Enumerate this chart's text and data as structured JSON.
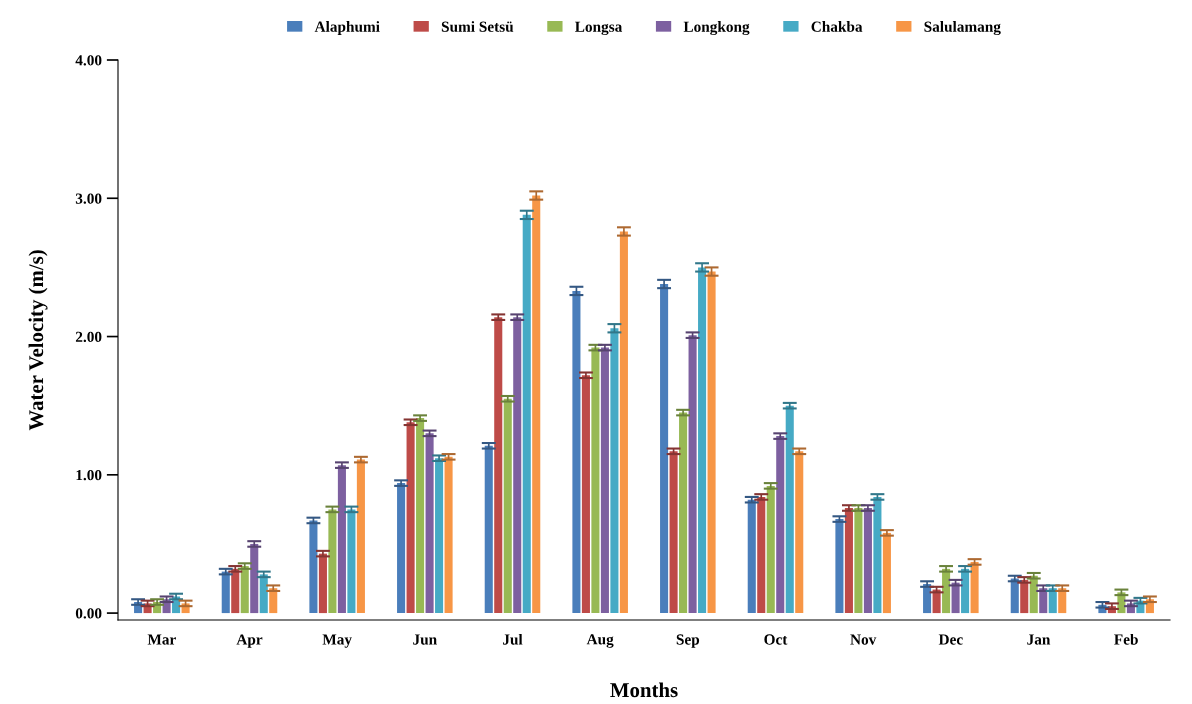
{
  "chart_data": {
    "type": "bar",
    "xlabel": "Months",
    "ylabel": "Water Velocity (m/s)",
    "categories": [
      "Mar",
      "Apr",
      "May",
      "Jun",
      "Jul",
      "Aug",
      "Sep",
      "Oct",
      "Nov",
      "Dec",
      "Jan",
      "Feb"
    ],
    "ylim": [
      -0.05,
      4
    ],
    "yticks": [
      {
        "value": 0,
        "label": "0.00"
      },
      {
        "value": 1,
        "label": "1.00"
      },
      {
        "value": 2,
        "label": "2.00"
      },
      {
        "value": 3,
        "label": "3.00"
      },
      {
        "value": 4,
        "label": "4.00"
      }
    ],
    "grid": false,
    "legend": "top",
    "series": [
      {
        "name": "Alaphumi",
        "color": "#4a7ebb",
        "values": [
          0.08,
          0.3,
          0.67,
          0.94,
          1.21,
          2.33,
          2.38,
          0.82,
          0.68,
          0.21,
          0.25,
          0.06
        ],
        "errors": [
          0.02,
          0.02,
          0.02,
          0.02,
          0.02,
          0.03,
          0.03,
          0.02,
          0.02,
          0.02,
          0.02,
          0.02
        ]
      },
      {
        "name": "Sumi Setsü",
        "color": "#be4b48",
        "values": [
          0.07,
          0.32,
          0.43,
          1.38,
          2.14,
          1.72,
          1.17,
          0.84,
          0.76,
          0.17,
          0.24,
          0.05
        ],
        "errors": [
          0.02,
          0.02,
          0.02,
          0.02,
          0.02,
          0.02,
          0.02,
          0.02,
          0.02,
          0.02,
          0.02,
          0.02
        ]
      },
      {
        "name": "Longsa",
        "color": "#98b954",
        "values": [
          0.08,
          0.34,
          0.75,
          1.41,
          1.55,
          1.92,
          1.45,
          0.92,
          0.76,
          0.32,
          0.27,
          0.15
        ],
        "errors": [
          0.02,
          0.02,
          0.02,
          0.02,
          0.02,
          0.02,
          0.02,
          0.02,
          0.02,
          0.02,
          0.02,
          0.02
        ]
      },
      {
        "name": "Longkong",
        "color": "#7d60a0",
        "values": [
          0.1,
          0.5,
          1.07,
          1.3,
          2.14,
          1.92,
          2.01,
          1.28,
          0.76,
          0.22,
          0.18,
          0.07
        ],
        "errors": [
          0.02,
          0.02,
          0.02,
          0.02,
          0.02,
          0.02,
          0.02,
          0.02,
          0.02,
          0.02,
          0.02,
          0.02
        ]
      },
      {
        "name": "Chakba",
        "color": "#46aac5",
        "values": [
          0.12,
          0.28,
          0.75,
          1.12,
          2.88,
          2.06,
          2.5,
          1.5,
          0.84,
          0.32,
          0.18,
          0.09
        ],
        "errors": [
          0.02,
          0.02,
          0.02,
          0.02,
          0.03,
          0.03,
          0.03,
          0.02,
          0.02,
          0.02,
          0.02,
          0.02
        ]
      },
      {
        "name": "Salulamang",
        "color": "#f79646",
        "values": [
          0.07,
          0.18,
          1.11,
          1.13,
          3.02,
          2.76,
          2.47,
          1.17,
          0.58,
          0.37,
          0.18,
          0.1
        ],
        "errors": [
          0.02,
          0.02,
          0.02,
          0.02,
          0.03,
          0.03,
          0.03,
          0.02,
          0.02,
          0.02,
          0.02,
          0.02
        ]
      }
    ]
  }
}
